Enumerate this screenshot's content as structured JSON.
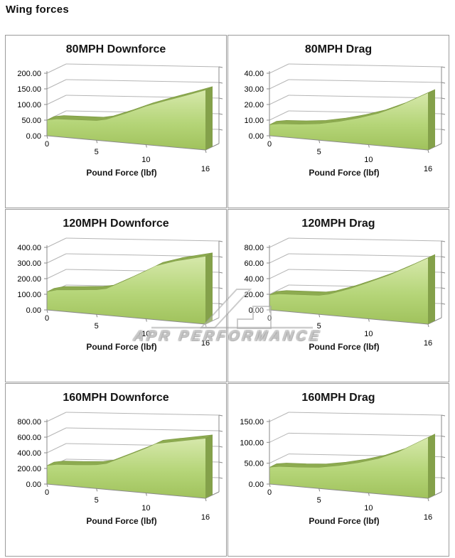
{
  "header": {
    "title": "Wing forces"
  },
  "watermark": {
    "text": "APR PERFORMANCE",
    "logo": "apr-logo"
  },
  "colors": {
    "area_fill_top": "#d6e8ab",
    "area_fill_mid": "#b5d578",
    "area_fill_bottom": "#a0c25c",
    "area_top_band": "#8dab50",
    "area_band_stroke": "#7e9a44",
    "area_side": "#84a14a",
    "gridline": "#b5b5b5",
    "axis": "#8a8a8a",
    "text": "#000000",
    "panel_border": "#9b9b9b"
  },
  "chart_data": [
    {
      "type": "area",
      "title": "80MPH Downforce",
      "xlabel": "Pound Force (lbf)",
      "xlim": [
        0,
        16
      ],
      "ylim": [
        0,
        200
      ],
      "xticks": [
        0,
        5,
        10,
        16
      ],
      "yticks": [
        "0.00",
        "50.00",
        "100.00",
        "150.00",
        "200.00"
      ],
      "points": [
        [
          0,
          50
        ],
        [
          1,
          55
        ],
        [
          3,
          56
        ],
        [
          5,
          57
        ],
        [
          6,
          62
        ],
        [
          8,
          82
        ],
        [
          10,
          103
        ],
        [
          12,
          119
        ],
        [
          14,
          133
        ],
        [
          16,
          147
        ]
      ]
    },
    {
      "type": "area",
      "title": "80MPH Drag",
      "xlabel": "Pound Force (lbf)",
      "xlim": [
        0,
        16
      ],
      "ylim": [
        0,
        40
      ],
      "xticks": [
        0,
        5,
        10,
        16
      ],
      "yticks": [
        "0.00",
        "10.00",
        "20.00",
        "30.00",
        "40.00"
      ],
      "points": [
        [
          0,
          7
        ],
        [
          1,
          8
        ],
        [
          3,
          8.5
        ],
        [
          5,
          9.5
        ],
        [
          7,
          11.5
        ],
        [
          9,
          14
        ],
        [
          11,
          17
        ],
        [
          13,
          21
        ],
        [
          16,
          28
        ]
      ]
    },
    {
      "type": "area",
      "title": "120MPH Downforce",
      "xlabel": "Pound Force (lbf)",
      "xlim": [
        0,
        16
      ],
      "ylim": [
        0,
        400
      ],
      "xticks": [
        0,
        5,
        10,
        16
      ],
      "yticks": [
        "0.00",
        "100.00",
        "200.00",
        "300.00",
        "400.00"
      ],
      "points": [
        [
          0,
          115
        ],
        [
          1,
          130
        ],
        [
          3,
          136
        ],
        [
          5,
          143
        ],
        [
          6,
          152
        ],
        [
          8,
          205
        ],
        [
          10,
          258
        ],
        [
          11,
          285
        ],
        [
          13,
          310
        ],
        [
          16,
          333
        ]
      ]
    },
    {
      "type": "area",
      "title": "120MPH Drag",
      "xlabel": "Pound Force (lbf)",
      "xlim": [
        0,
        16
      ],
      "ylim": [
        0,
        80
      ],
      "xticks": [
        0,
        5,
        10,
        16
      ],
      "yticks": [
        "0.00",
        "20.00",
        "40.00",
        "60.00",
        "80.00"
      ],
      "points": [
        [
          0,
          19
        ],
        [
          1,
          21
        ],
        [
          3,
          21.5
        ],
        [
          5,
          22
        ],
        [
          6,
          24
        ],
        [
          8,
          31
        ],
        [
          10,
          39
        ],
        [
          12,
          47
        ],
        [
          14,
          56
        ],
        [
          16,
          65
        ]
      ]
    },
    {
      "type": "area",
      "title": "160MPH Downforce",
      "xlabel": "Pound Force (lbf)",
      "xlim": [
        0,
        16
      ],
      "ylim": [
        0,
        800
      ],
      "xticks": [
        0,
        5,
        10,
        16
      ],
      "yticks": [
        "0.00",
        "200.00",
        "400.00",
        "600.00",
        "800.00"
      ],
      "points": [
        [
          0,
          235
        ],
        [
          1,
          255
        ],
        [
          3,
          262
        ],
        [
          5,
          275
        ],
        [
          6,
          295
        ],
        [
          8,
          390
        ],
        [
          10,
          480
        ],
        [
          11,
          530
        ],
        [
          13,
          555
        ],
        [
          16,
          588
        ]
      ]
    },
    {
      "type": "area",
      "title": "160MPH Drag",
      "xlabel": "Pound Force (lbf)",
      "xlim": [
        0,
        16
      ],
      "ylim": [
        0,
        150
      ],
      "xticks": [
        0,
        5,
        10,
        16
      ],
      "yticks": [
        "0.00",
        "50.00",
        "100.00",
        "150.00"
      ],
      "points": [
        [
          0,
          40
        ],
        [
          1,
          43
        ],
        [
          3,
          44
        ],
        [
          5,
          46
        ],
        [
          7,
          52
        ],
        [
          9,
          60
        ],
        [
          11,
          70
        ],
        [
          13,
          84
        ],
        [
          16,
          112
        ]
      ]
    }
  ]
}
